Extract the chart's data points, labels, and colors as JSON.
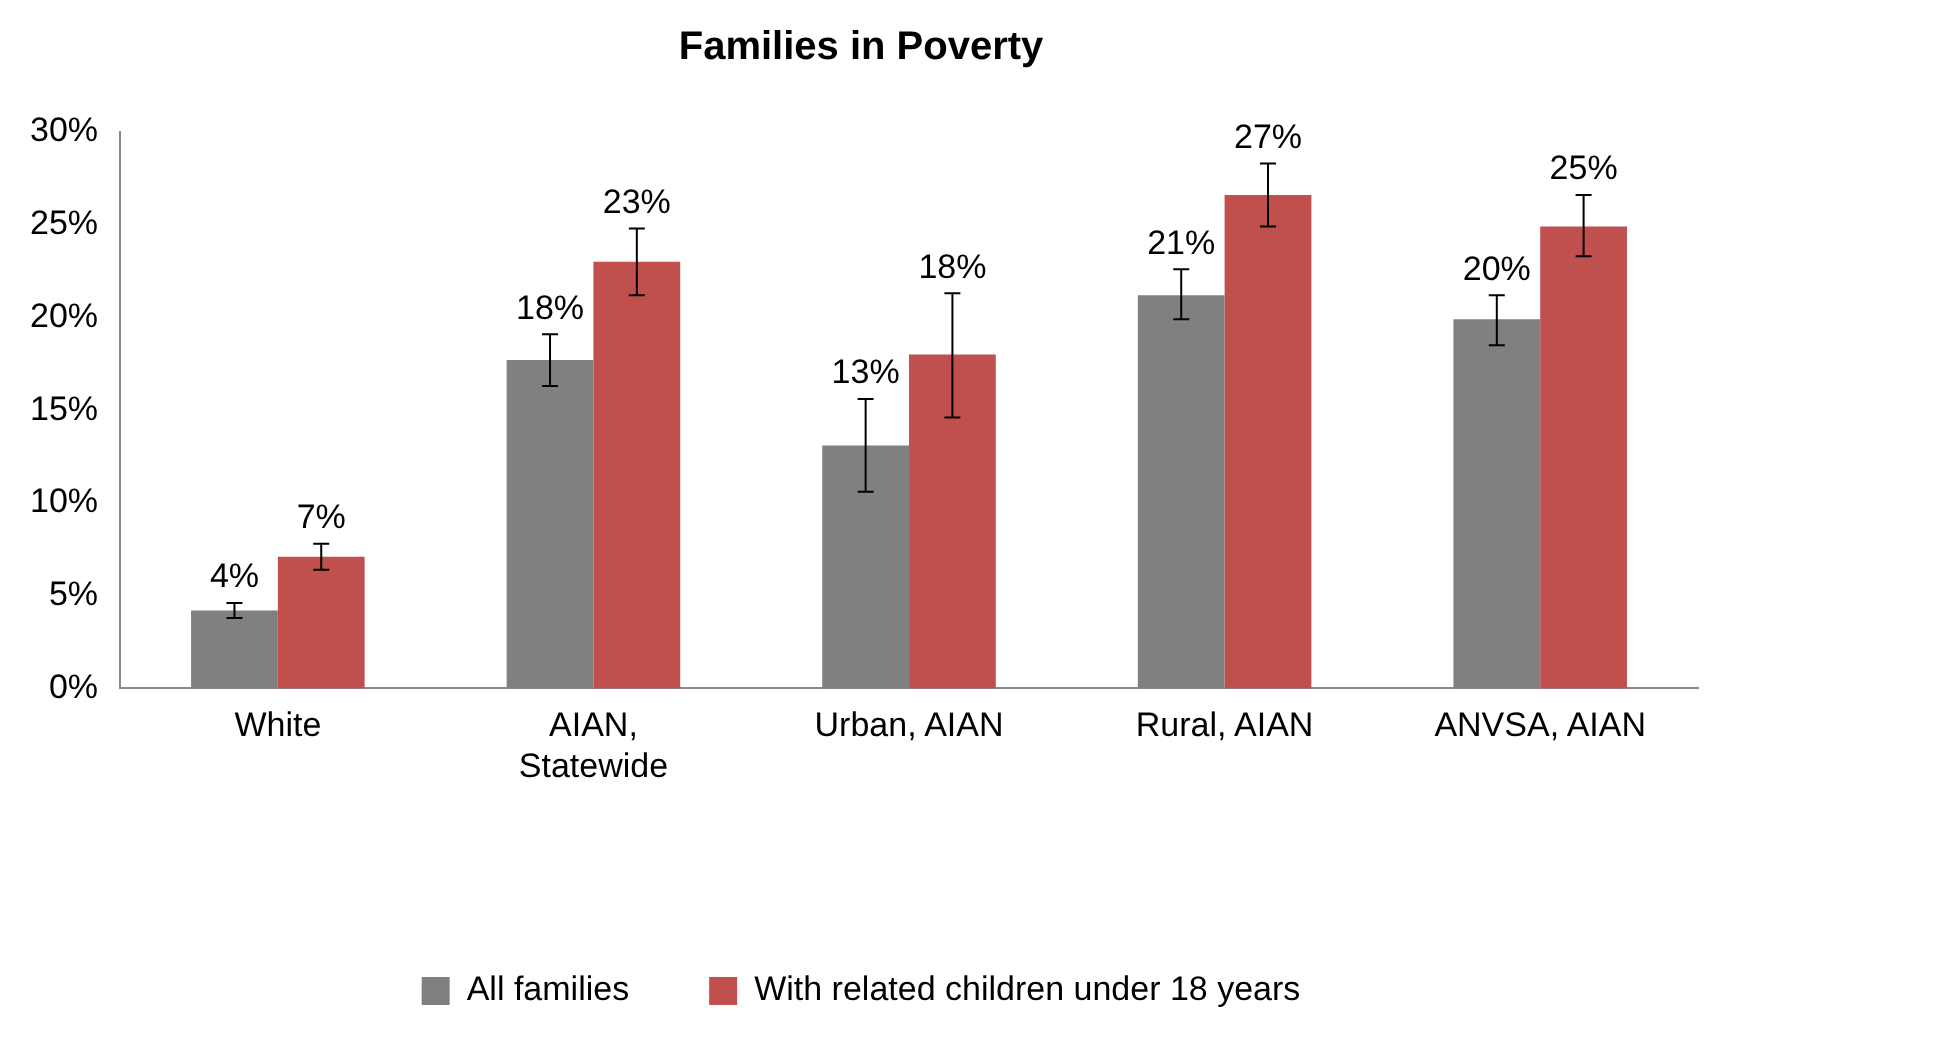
{
  "chart_data": {
    "type": "bar",
    "title": "Families in Poverty",
    "categories": [
      "White",
      "AIAN, Statewide",
      "Urban, AIAN",
      "Rural, AIAN",
      "ANVSA, AIAN"
    ],
    "series": [
      {
        "name": "All families",
        "color": "#808080",
        "values": [
          4.2,
          17.7,
          13.1,
          21.2,
          19.9
        ],
        "errors": [
          [
            3.8,
            4.6
          ],
          [
            16.3,
            19.1
          ],
          [
            10.6,
            15.6
          ],
          [
            19.9,
            22.6
          ],
          [
            18.5,
            21.2
          ]
        ],
        "value_labels": [
          "4%",
          "18%",
          "13%",
          "21%",
          "20%"
        ]
      },
      {
        "name": "With related children under 18 years",
        "color": "#c0504d",
        "values": [
          7.1,
          23.0,
          18.0,
          26.6,
          24.9
        ],
        "errors": [
          [
            6.4,
            7.8
          ],
          [
            21.2,
            24.8
          ],
          [
            14.6,
            21.3
          ],
          [
            24.9,
            28.3
          ],
          [
            23.3,
            26.6
          ]
        ],
        "value_labels": [
          "7%",
          "23%",
          "18%",
          "27%",
          "25%"
        ]
      }
    ],
    "ylim": [
      0,
      30
    ],
    "yticks": [
      {
        "value": 0,
        "label": "0%"
      },
      {
        "value": 5,
        "label": "5%"
      },
      {
        "value": 10,
        "label": "10%"
      },
      {
        "value": 15,
        "label": "15%"
      },
      {
        "value": 20,
        "label": "20%"
      },
      {
        "value": 25,
        "label": "25%"
      },
      {
        "value": 30,
        "label": "30%"
      }
    ],
    "grid": false,
    "legend": "bottom"
  }
}
